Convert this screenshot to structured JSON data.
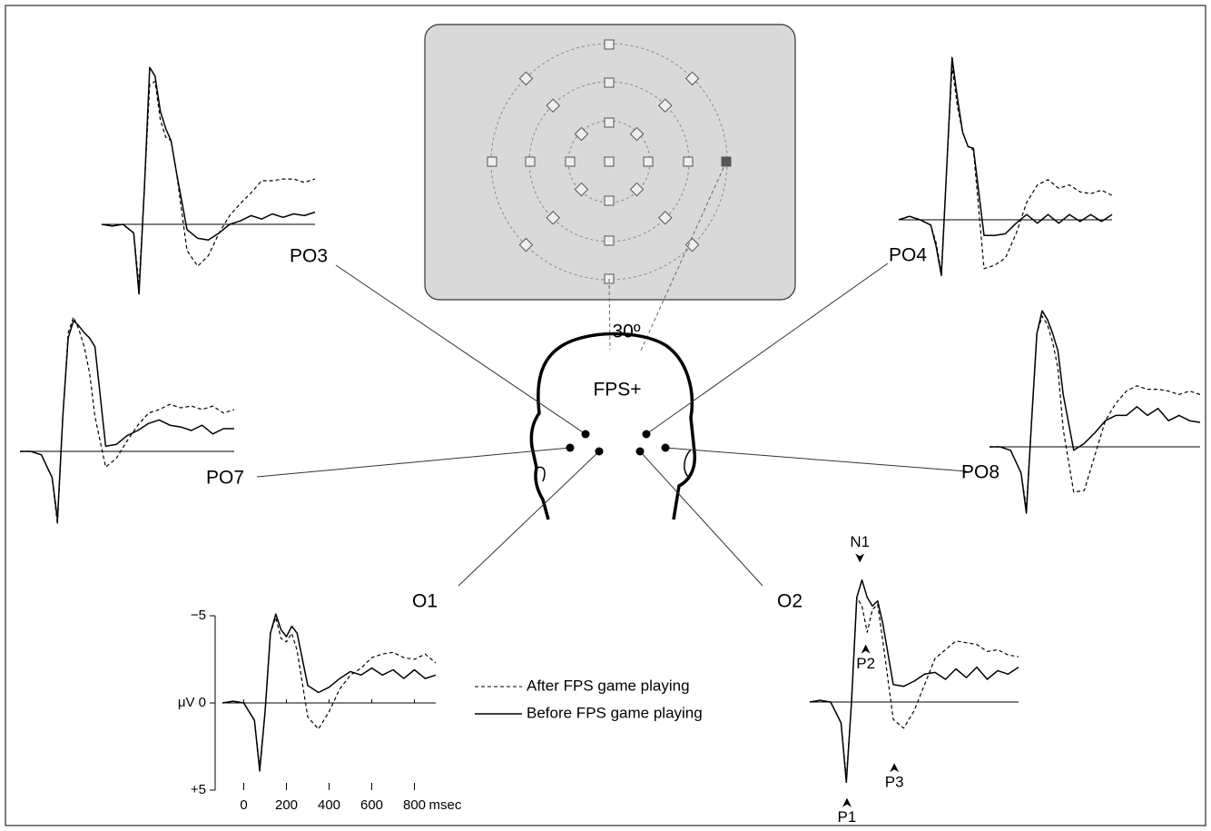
{
  "chart_data": [
    {
      "type": "line",
      "title": "PO3",
      "xlim": [
        -100,
        900
      ],
      "x": [
        -100,
        -50,
        0,
        50,
        75,
        100,
        125,
        150,
        175,
        200,
        225,
        250,
        300,
        350,
        400,
        450,
        500,
        550,
        600,
        650,
        700,
        750,
        800,
        850,
        900
      ],
      "series": [
        {
          "color": "#000000",
          "dash": false,
          "values": [
            0,
            0.1,
            0,
            0.5,
            4.0,
            -2,
            -9.0,
            -8.5,
            -6.5,
            -5.5,
            -4.8,
            -3,
            0.3,
            0.8,
            0.9,
            0.5,
            0,
            -0.2,
            -0.5,
            -0.3,
            -0.6,
            -0.4,
            -0.6,
            -0.5,
            -0.7
          ]
        },
        {
          "color": "#000000",
          "dash": true,
          "values": [
            0,
            0.1,
            0,
            0.5,
            3.5,
            -2,
            -8.0,
            -8.2,
            -6,
            -5,
            -4.8,
            -3,
            1.5,
            2.4,
            1.8,
            0.5,
            -0.5,
            -1.2,
            -1.8,
            -2.5,
            -2.5,
            -2.6,
            -2.6,
            -2.4,
            -2.6
          ]
        }
      ]
    },
    {
      "type": "line",
      "title": "PO4",
      "xlim": [
        -100,
        900
      ],
      "x": [
        -100,
        -50,
        0,
        50,
        75,
        100,
        125,
        150,
        175,
        200,
        225,
        250,
        300,
        350,
        400,
        450,
        500,
        550,
        600,
        650,
        700,
        750,
        800,
        850,
        900
      ],
      "series": [
        {
          "color": "#000000",
          "dash": false,
          "values": [
            0,
            -0.2,
            0,
            0.3,
            1.5,
            3.2,
            -3,
            -9.3,
            -7,
            -5,
            -4.2,
            -4.1,
            0.9,
            0.9,
            0.8,
            0.2,
            -0.3,
            0.2,
            -0.3,
            0.2,
            -0.3,
            0.1,
            -0.3,
            0.1,
            -0.3
          ]
        },
        {
          "color": "#000000",
          "dash": true,
          "values": [
            0,
            -0.2,
            0,
            0.3,
            1.3,
            3.0,
            -3,
            -8.8,
            -6.5,
            -5,
            -4.2,
            -4.0,
            2.8,
            2.6,
            2.2,
            0.8,
            -1.0,
            -2.0,
            -2.3,
            -1.8,
            -2.0,
            -1.6,
            -1.5,
            -1.7,
            -1.4
          ]
        }
      ]
    },
    {
      "type": "line",
      "title": "PO7",
      "xlim": [
        -100,
        900
      ],
      "x": [
        -100,
        -50,
        0,
        50,
        75,
        100,
        125,
        150,
        175,
        200,
        225,
        250,
        300,
        350,
        400,
        450,
        500,
        550,
        600,
        650,
        700,
        750,
        800,
        850,
        900
      ],
      "series": [
        {
          "color": "#000000",
          "dash": false,
          "values": [
            0,
            0,
            0.2,
            1.5,
            3.9,
            -2,
            -6.5,
            -7.5,
            -7.2,
            -6.8,
            -6.5,
            -6,
            -0.3,
            -0.4,
            -0.9,
            -1.2,
            -1.6,
            -1.8,
            -1.5,
            -1.4,
            -1.2,
            -1.5,
            -1.0,
            -1.3,
            -1.3
          ]
        },
        {
          "color": "#000000",
          "dash": true,
          "values": [
            0,
            0,
            0.2,
            1.5,
            4.2,
            -2,
            -6.8,
            -7.7,
            -7,
            -6,
            -4.5,
            -2,
            0.9,
            0.4,
            -0.6,
            -1.5,
            -2.2,
            -2.4,
            -2.7,
            -2.5,
            -2.6,
            -2.4,
            -2.6,
            -2.2,
            -2.4
          ]
        }
      ]
    },
    {
      "type": "line",
      "title": "PO8",
      "xlim": [
        -100,
        900
      ],
      "x": [
        -100,
        -50,
        0,
        50,
        75,
        100,
        125,
        150,
        175,
        200,
        225,
        250,
        300,
        350,
        400,
        450,
        500,
        550,
        600,
        650,
        700,
        750,
        800,
        850,
        900
      ],
      "series": [
        {
          "color": "#000000",
          "dash": false,
          "values": [
            0,
            0,
            0.2,
            1.5,
            3.8,
            -1.5,
            -6.5,
            -7.8,
            -7.3,
            -6.5,
            -5.5,
            -3,
            0.2,
            -0.2,
            -0.8,
            -1.5,
            -1.8,
            -1.8,
            -2.3,
            -1.8,
            -2.2,
            -1.5,
            -1.8,
            -1.5,
            -1.4
          ]
        },
        {
          "color": "#000000",
          "dash": true,
          "values": [
            0,
            0,
            0.2,
            1.5,
            3.5,
            -1.5,
            -6.5,
            -7.5,
            -7.0,
            -6,
            -4.5,
            -1,
            2.6,
            2.5,
            0.5,
            -1.5,
            -2.5,
            -3.2,
            -3.5,
            -3.3,
            -3.3,
            -3.2,
            -3.0,
            -3.2,
            -3.0
          ]
        }
      ]
    },
    {
      "type": "line",
      "title": "O1",
      "xlim": [
        -100,
        900
      ],
      "ylim": [
        5,
        -5
      ],
      "yticks": [
        {
          "value": -5,
          "label": "−5"
        },
        {
          "value": 0,
          "label": "μV 0"
        },
        {
          "value": 5,
          "label": "+5"
        }
      ],
      "xticks": [
        0,
        200,
        400,
        600,
        800
      ],
      "x_label": "msec",
      "x": [
        -100,
        -50,
        0,
        50,
        75,
        100,
        125,
        150,
        175,
        200,
        225,
        250,
        300,
        350,
        400,
        450,
        500,
        550,
        600,
        650,
        700,
        750,
        800,
        850,
        900
      ],
      "series": [
        {
          "name": "Before FPS game playing",
          "color": "#000000",
          "dash": false,
          "values": [
            0,
            -0.1,
            0,
            1.0,
            3.9,
            0.5,
            -4,
            -5.1,
            -4.2,
            -3.8,
            -4.4,
            -4,
            -1,
            -0.6,
            -0.9,
            -1.4,
            -1.8,
            -1.6,
            -2.0,
            -1.6,
            -1.9,
            -1.4,
            -1.9,
            -1.4,
            -1.6
          ]
        },
        {
          "name": "After FPS game playing",
          "color": "#000000",
          "dash": true,
          "values": [
            0,
            -0.1,
            0,
            1.0,
            3.7,
            0.5,
            -4,
            -4.9,
            -3.7,
            -3.5,
            -4.0,
            -3,
            0.8,
            1.5,
            0.5,
            -0.8,
            -1.6,
            -2.0,
            -2.6,
            -2.8,
            -2.9,
            -2.6,
            -2.5,
            -2.8,
            -2.3
          ]
        }
      ]
    },
    {
      "type": "line",
      "title": "O2",
      "xlim": [
        -100,
        900
      ],
      "x": [
        -100,
        -50,
        0,
        50,
        75,
        100,
        125,
        150,
        175,
        200,
        225,
        250,
        300,
        350,
        400,
        450,
        500,
        550,
        600,
        650,
        700,
        750,
        800,
        850,
        900
      ],
      "series": [
        {
          "color": "#000000",
          "dash": false,
          "values": [
            0,
            -0.1,
            0,
            1.2,
            4.6,
            0,
            -6,
            -7.0,
            -6.0,
            -5.5,
            -5.8,
            -4.5,
            -1,
            -0.9,
            -1.2,
            -1.6,
            -1.7,
            -1.3,
            -1.9,
            -1.4,
            -2.0,
            -1.3,
            -1.8,
            -1.6,
            -2.0
          ]
        },
        {
          "color": "#000000",
          "dash": true,
          "values": [
            0,
            -0.1,
            0,
            1.2,
            4.4,
            0,
            -6,
            -5.5,
            -4.0,
            -5.3,
            -5.6,
            -3.5,
            1.0,
            1.5,
            0.5,
            -1.0,
            -2.5,
            -3.0,
            -3.5,
            -3.4,
            -3.3,
            -2.9,
            -3.0,
            -2.7,
            -2.6
          ]
        }
      ],
      "annotations": [
        {
          "text": "N1",
          "x": 140,
          "y": -8,
          "side": "above"
        },
        {
          "text": "P1",
          "x": 78,
          "y": 5.5,
          "side": "below"
        },
        {
          "text": "P2",
          "x": 168,
          "y": -3.3,
          "side": "below"
        },
        {
          "text": "P3",
          "x": 305,
          "y": 3.5,
          "side": "below"
        }
      ]
    }
  ],
  "diagram": {
    "angle_label": "30º",
    "head_label": "FPS+"
  }
}
